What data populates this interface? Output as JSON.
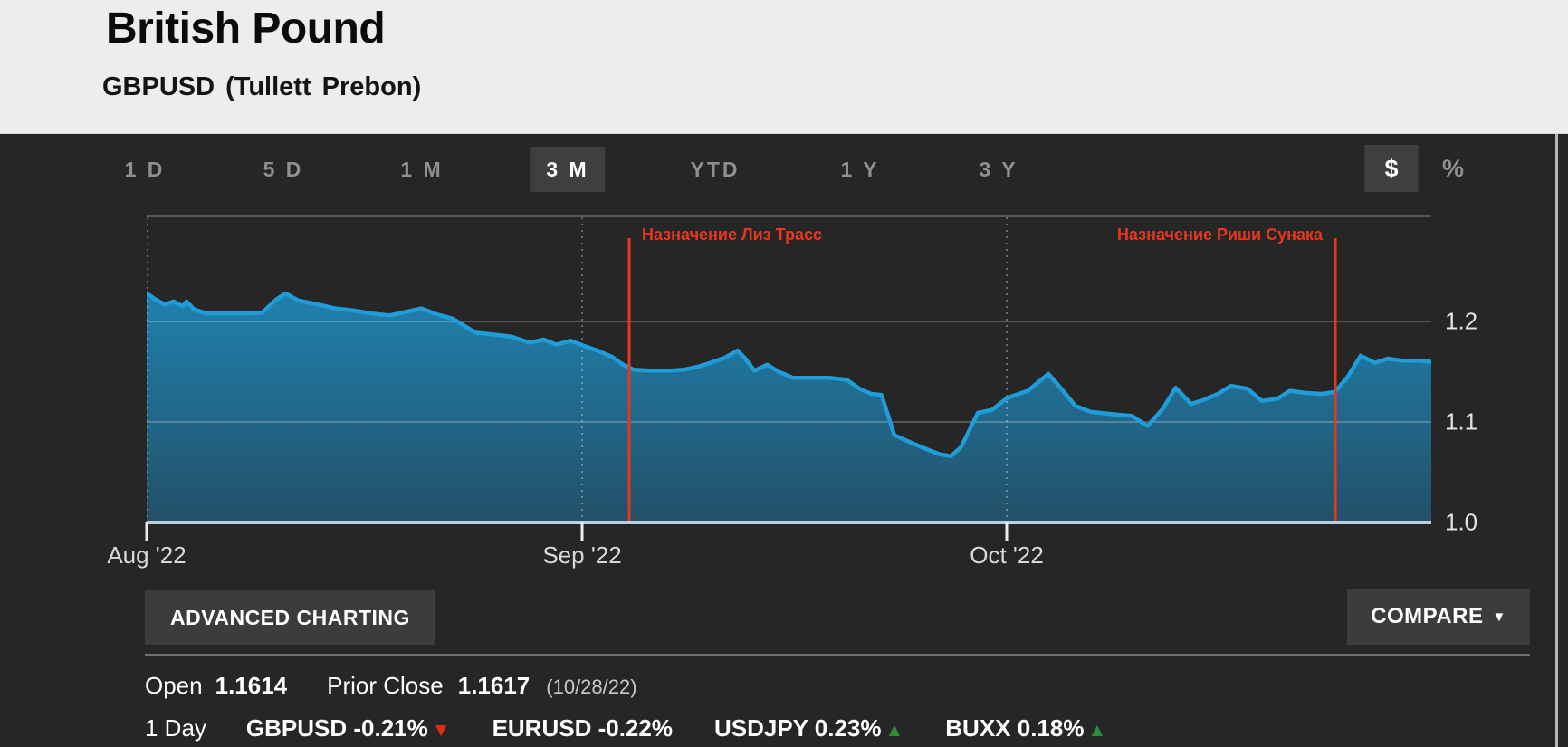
{
  "header": {
    "title": "British Pound",
    "subtitle": "GBPUSD (Tullett Prebon)"
  },
  "range_tabs": {
    "items": [
      {
        "label": "1 D",
        "selected": false
      },
      {
        "label": "5 D",
        "selected": false
      },
      {
        "label": "1 M",
        "selected": false
      },
      {
        "label": "3 M",
        "selected": true
      },
      {
        "label": "YTD",
        "selected": false
      },
      {
        "label": "1 Y",
        "selected": false
      },
      {
        "label": "3 Y",
        "selected": false
      }
    ],
    "unit_toggle": [
      {
        "label": "$",
        "selected": true
      },
      {
        "label": "%",
        "selected": false
      }
    ]
  },
  "chart_data": {
    "type": "area",
    "title": "GBPUSD 3-month price chart",
    "x_ticks": [
      {
        "label": "Aug '22",
        "pos": 0
      },
      {
        "label": "Sep '22",
        "pos": 33.9
      },
      {
        "label": "Oct '22",
        "pos": 66.95
      }
    ],
    "y_ticks": [
      {
        "label": "1.2",
        "value": 1.2
      },
      {
        "label": "1.1",
        "value": 1.1
      },
      {
        "label": "1.0",
        "value": 1.0
      }
    ],
    "grid_values": [
      1.2,
      1.1
    ],
    "ylim": [
      1.0,
      1.3055
    ],
    "legend": "none",
    "series": [
      {
        "name": "GBPUSD",
        "points": [
          [
            0,
            1.228
          ],
          [
            0.7,
            1.222
          ],
          [
            1.4,
            1.217
          ],
          [
            2.1,
            1.22
          ],
          [
            2.8,
            1.215
          ],
          [
            3.1,
            1.22
          ],
          [
            3.7,
            1.212
          ],
          [
            4.7,
            1.208
          ],
          [
            6.2,
            1.208
          ],
          [
            7.6,
            1.208
          ],
          [
            9,
            1.209
          ],
          [
            10.1,
            1.222
          ],
          [
            10.8,
            1.228
          ],
          [
            11.8,
            1.221
          ],
          [
            13.3,
            1.217
          ],
          [
            14.7,
            1.213
          ],
          [
            16.1,
            1.211
          ],
          [
            17.5,
            1.208
          ],
          [
            18.9,
            1.206
          ],
          [
            20.3,
            1.21
          ],
          [
            21.4,
            1.213
          ],
          [
            22.6,
            1.207
          ],
          [
            23.8,
            1.203
          ],
          [
            24.7,
            1.196
          ],
          [
            25.6,
            1.189
          ],
          [
            27,
            1.187
          ],
          [
            28.4,
            1.185
          ],
          [
            29.8,
            1.179
          ],
          [
            30.9,
            1.182
          ],
          [
            31.9,
            1.177
          ],
          [
            33,
            1.181
          ],
          [
            34,
            1.176
          ],
          [
            35.1,
            1.171
          ],
          [
            36.2,
            1.165
          ],
          [
            37.1,
            1.157
          ],
          [
            37.9,
            1.152
          ],
          [
            39.3,
            1.151
          ],
          [
            40.7,
            1.151
          ],
          [
            41.8,
            1.152
          ],
          [
            42.9,
            1.155
          ],
          [
            43.9,
            1.159
          ],
          [
            45,
            1.164
          ],
          [
            46,
            1.171
          ],
          [
            46.6,
            1.163
          ],
          [
            47.3,
            1.151
          ],
          [
            48.3,
            1.157
          ],
          [
            49.2,
            1.15
          ],
          [
            50.3,
            1.144
          ],
          [
            51.7,
            1.144
          ],
          [
            53.1,
            1.144
          ],
          [
            54.5,
            1.142
          ],
          [
            55.5,
            1.133
          ],
          [
            56.4,
            1.128
          ],
          [
            57.2,
            1.127
          ],
          [
            58.2,
            1.087
          ],
          [
            59.4,
            1.08
          ],
          [
            60.5,
            1.074
          ],
          [
            61.7,
            1.068
          ],
          [
            62.6,
            1.066
          ],
          [
            63.4,
            1.075
          ],
          [
            64.7,
            1.109
          ],
          [
            65.8,
            1.112
          ],
          [
            67,
            1.124
          ],
          [
            68.6,
            1.131
          ],
          [
            70.2,
            1.148
          ],
          [
            71.2,
            1.133
          ],
          [
            72.3,
            1.116
          ],
          [
            73.5,
            1.11
          ],
          [
            75.1,
            1.108
          ],
          [
            76.7,
            1.106
          ],
          [
            77.9,
            1.096
          ],
          [
            79.1,
            1.113
          ],
          [
            80.1,
            1.134
          ],
          [
            81.3,
            1.118
          ],
          [
            82.3,
            1.122
          ],
          [
            83.4,
            1.128
          ],
          [
            84.4,
            1.136
          ],
          [
            85.7,
            1.133
          ],
          [
            86.8,
            1.121
          ],
          [
            88,
            1.123
          ],
          [
            89,
            1.131
          ],
          [
            90.2,
            1.129
          ],
          [
            91.5,
            1.128
          ],
          [
            92.5,
            1.13
          ],
          [
            93.5,
            1.145
          ],
          [
            94.5,
            1.166
          ],
          [
            95.6,
            1.159
          ],
          [
            96.6,
            1.163
          ],
          [
            97.8,
            1.161
          ],
          [
            98.9,
            1.161
          ],
          [
            100,
            1.16
          ]
        ]
      }
    ],
    "annotations": [
      {
        "label": "Назначение Лиз Трасс",
        "pos": 37.56,
        "text_side": "right"
      },
      {
        "label": "Назначение Риши Сунака",
        "pos": 92.53,
        "text_side": "left"
      }
    ],
    "colors": {
      "line": "#1e9dd8",
      "fill_top": "#1f81ae",
      "fill_bottom": "#235068",
      "annotation_red": "#e8371f"
    }
  },
  "buttons": {
    "advanced": "ADVANCED CHARTING",
    "compare": "COMPARE",
    "compare_caret": "▼"
  },
  "stats": {
    "open_label": "Open",
    "open_value": "1.1614",
    "prior_close_label": "Prior Close",
    "prior_close_value": "1.1617",
    "prior_close_date": "(10/28/22)",
    "day_label": "1 Day",
    "quotes": [
      {
        "label": "GBPUSD -0.21%",
        "direction": "down",
        "arrow": "▼",
        "arrow_color": "#dc2a1b"
      },
      {
        "label": "EURUSD -0.22%",
        "direction": "none",
        "arrow": "",
        "arrow_color": ""
      },
      {
        "label": "USDJPY 0.23%",
        "direction": "up",
        "arrow": "▲",
        "arrow_color": "#2e8b37"
      },
      {
        "label": "BUXX 0.18%",
        "direction": "up",
        "arrow": "▲",
        "arrow_color": "#2e8b37"
      }
    ]
  }
}
